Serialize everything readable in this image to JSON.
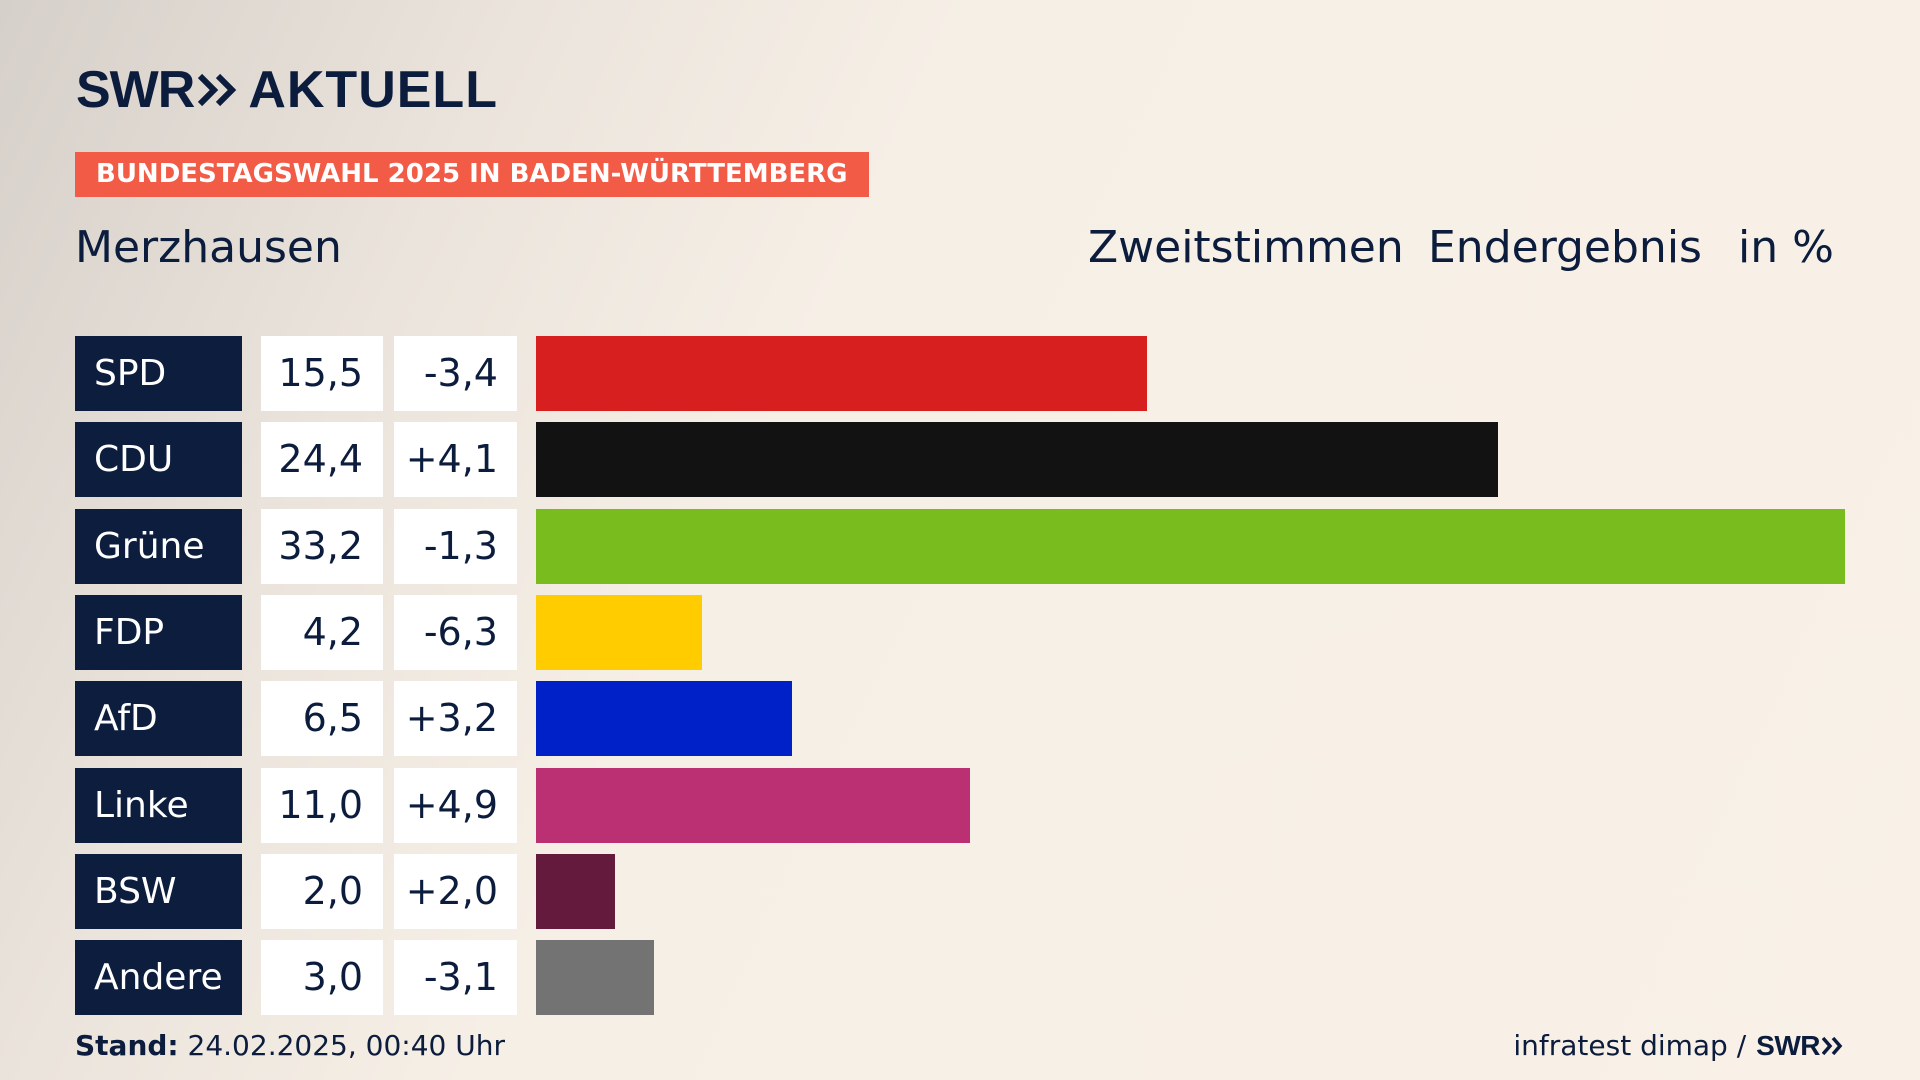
{
  "brand": {
    "logo_swr": "SWR",
    "logo_title": "AKTUELL",
    "icon": "double-chevron-right-icon",
    "color": "#0b1c3d"
  },
  "banner": {
    "label": "BUNDESTAGSWAHL 2025 IN BADEN-WÜRTTEMBERG",
    "color": "#f25c47"
  },
  "location": "Merzhausen",
  "header": {
    "vote_type": "Zweitstimmen",
    "result_type": "Endergebnis",
    "unit": "in %"
  },
  "chart_data": {
    "type": "bar",
    "orientation": "horizontal",
    "categories": [
      "SPD",
      "CDU",
      "Grüne",
      "FDP",
      "AfD",
      "Linke",
      "BSW",
      "Andere"
    ],
    "values": [
      15.5,
      24.4,
      33.2,
      4.2,
      6.5,
      11.0,
      2.0,
      3.0
    ],
    "value_labels": [
      "15,5",
      "24,4",
      "33,2",
      "4,2",
      "6,5",
      "11,0",
      "2,0",
      "3,0"
    ],
    "diffs": [
      -3.4,
      4.1,
      -1.3,
      -6.3,
      3.2,
      4.9,
      2.0,
      -3.1
    ],
    "diff_labels": [
      "-3,4",
      "+4,1",
      "-1,3",
      "-6,3",
      "+3,2",
      "+4,9",
      "+2,0",
      "-3,1"
    ],
    "colors": [
      "#d81f20",
      "#121212",
      "#79bc1d",
      "#ffcc00",
      "#0021c8",
      "#bb2f73",
      "#641a3d",
      "#737373"
    ],
    "xlim": [
      0,
      33.2
    ]
  },
  "footer": {
    "stand_label": "Stand:",
    "stand_value": "24.02.2025, 00:40 Uhr",
    "source": "infratest dimap /",
    "source_brand": "SWR"
  }
}
